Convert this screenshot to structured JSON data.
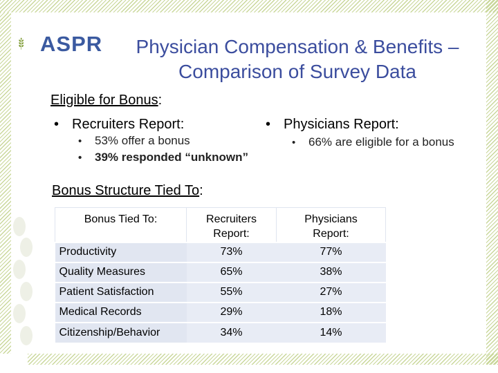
{
  "logo": {
    "text": "ASPR",
    "icon": "wheat-sprig-icon",
    "color": "#3b5aa0"
  },
  "title": {
    "line1": "Physician Compensation & Benefits –",
    "line2": "Comparison of Survey Data",
    "color": "#3b4d9e"
  },
  "eligible": {
    "heading": "Eligible for Bonus",
    "heading_suffix": ":",
    "recruiters": {
      "label": "Recruiters Report:",
      "items": [
        "53% offer a bonus",
        "39% responded “unknown”"
      ]
    },
    "physicians": {
      "label": "Physicians Report:",
      "items": [
        "66% are eligible for a bonus"
      ]
    }
  },
  "structure": {
    "heading": "Bonus Structure Tied To",
    "heading_suffix": ":",
    "table": {
      "headers": [
        "Bonus Tied To:",
        "Recruiters Report:",
        "Physicians Report:"
      ],
      "rows": [
        [
          "Productivity",
          "73%",
          "77%"
        ],
        [
          "Quality Measures",
          "65%",
          "38%"
        ],
        [
          "Patient Satisfaction",
          "55%",
          "27%"
        ],
        [
          "Medical Records",
          "29%",
          "18%"
        ],
        [
          "Citizenship/Behavior",
          "34%",
          "14%"
        ]
      ]
    }
  },
  "colors": {
    "border_hatch": "#c9d79a",
    "row_fill": "#e8ecf5"
  }
}
